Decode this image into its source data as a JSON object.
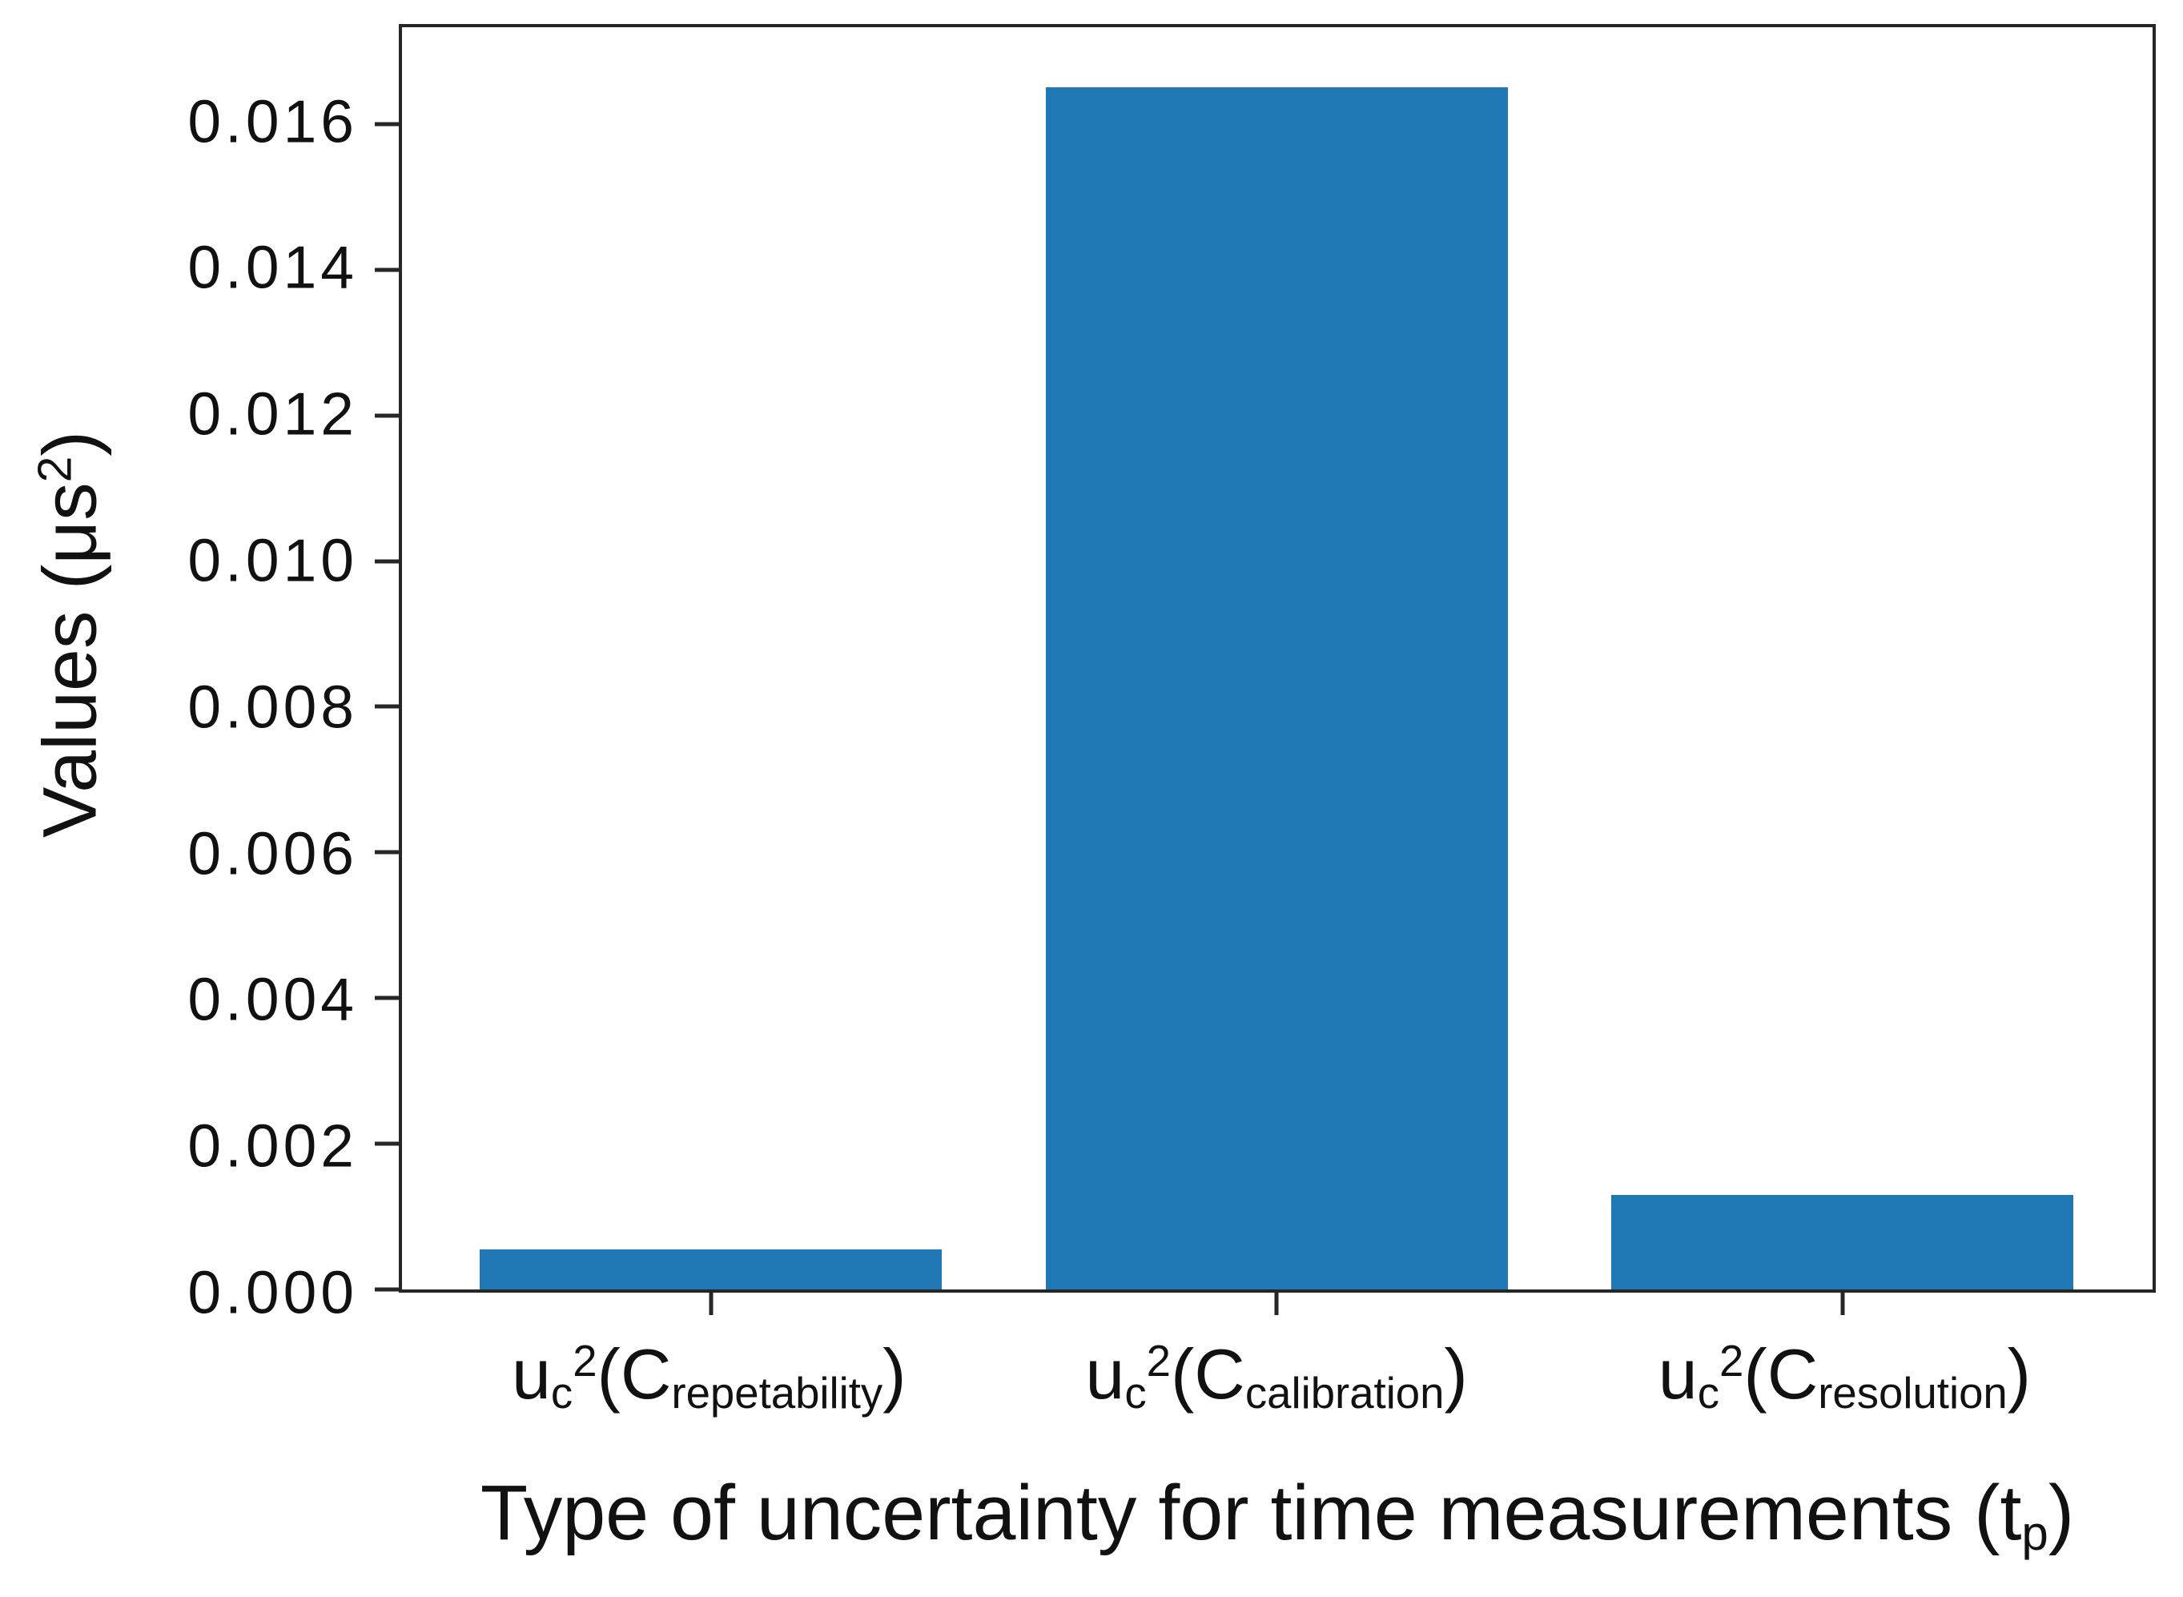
{
  "chart_data": {
    "type": "bar",
    "categories": [
      "u_c^2(C_repetability)",
      "u_c^2(C_calibration)",
      "u_c^2(C_resolution)"
    ],
    "values": [
      0.00055,
      0.0165,
      0.0013
    ],
    "title": "",
    "xlabel": "Type of uncertainty for time measurements (t_p)",
    "ylabel": "Values (μs^2)",
    "ylim": [
      0,
      0.01733
    ],
    "yticks": [
      0.0,
      0.002,
      0.004,
      0.006,
      0.008,
      0.01,
      0.012,
      0.014,
      0.016
    ],
    "ytick_labels": [
      "0.000",
      "0.002",
      "0.004",
      "0.006",
      "0.008",
      "0.010",
      "0.012",
      "0.014",
      "0.016"
    ],
    "grid": false,
    "legend": false,
    "bar_color": "#1f77b4"
  },
  "colors": {
    "bar": "#1f77b4",
    "axis": "#262626",
    "text": "#111111",
    "background": "#ffffff"
  },
  "rich_labels": {
    "categories": [
      [
        {
          "t": "u"
        },
        {
          "t": "c",
          "s": "sub"
        },
        {
          "t": "2",
          "s": "sup"
        },
        {
          "t": "(C"
        },
        {
          "t": "repetability",
          "s": "sub"
        },
        {
          "t": ")"
        }
      ],
      [
        {
          "t": "u"
        },
        {
          "t": "c",
          "s": "sub"
        },
        {
          "t": "2",
          "s": "sup"
        },
        {
          "t": "(C"
        },
        {
          "t": "calibration",
          "s": "sub"
        },
        {
          "t": ")"
        }
      ],
      [
        {
          "t": "u"
        },
        {
          "t": "c",
          "s": "sub"
        },
        {
          "t": "2",
          "s": "sup"
        },
        {
          "t": "(C"
        },
        {
          "t": "resolution",
          "s": "sub"
        },
        {
          "t": ")"
        }
      ]
    ],
    "xlabel": [
      {
        "t": "Type of uncertainty for time measurements (t"
      },
      {
        "t": "p",
        "s": "sub"
      },
      {
        "t": ")"
      }
    ],
    "ylabel": [
      {
        "t": "Values (μs"
      },
      {
        "t": "2",
        "s": "sup"
      },
      {
        "t": ")"
      }
    ]
  }
}
